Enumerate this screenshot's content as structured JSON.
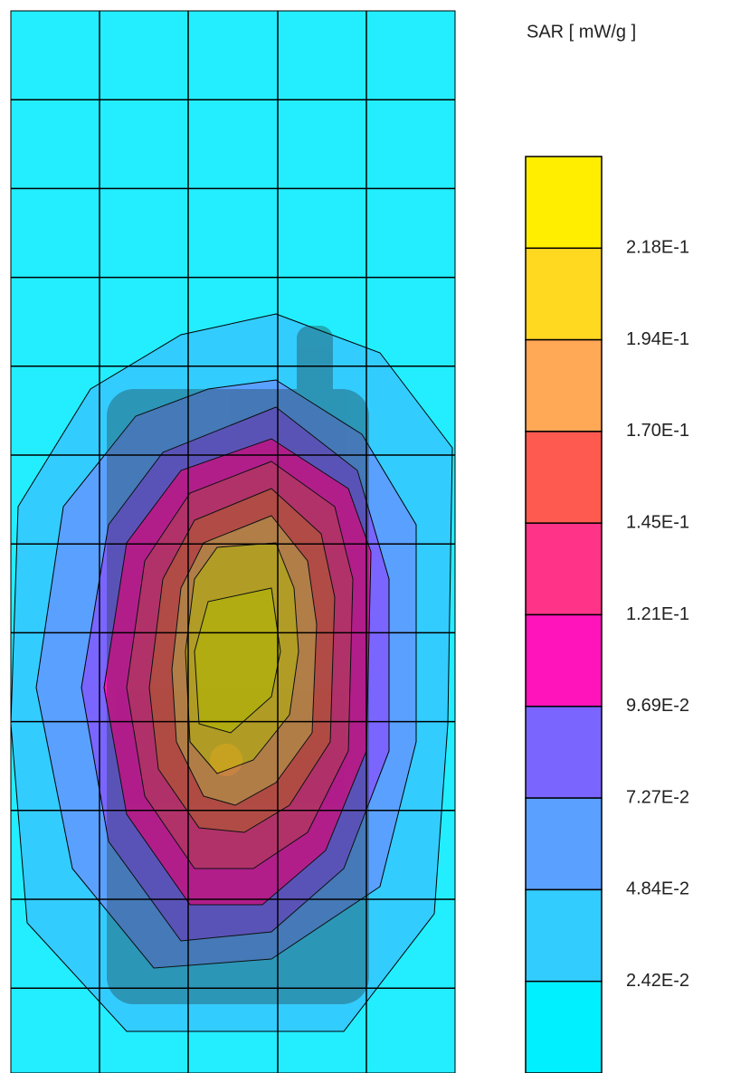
{
  "legend": {
    "title": "SAR [ mW/g ]",
    "levels": [
      {
        "label": "2.18E-1",
        "color": "#ffee00"
      },
      {
        "label": "1.94E-1",
        "color": "#ffd820"
      },
      {
        "label": "1.70E-1",
        "color": "#ffa855"
      },
      {
        "label": "1.45E-1",
        "color": "#ff5a50"
      },
      {
        "label": "1.21E-1",
        "color": "#ff3388"
      },
      {
        "label": "9.69E-2",
        "color": "#ff14bb"
      },
      {
        "label": "7.27E-2",
        "color": "#7a66ff"
      },
      {
        "label": "4.84E-2",
        "color": "#5aa0ff"
      },
      {
        "label": "2.42E-2",
        "color": "#33ccff"
      }
    ],
    "bottom_color": "#00f0ff"
  }
}
